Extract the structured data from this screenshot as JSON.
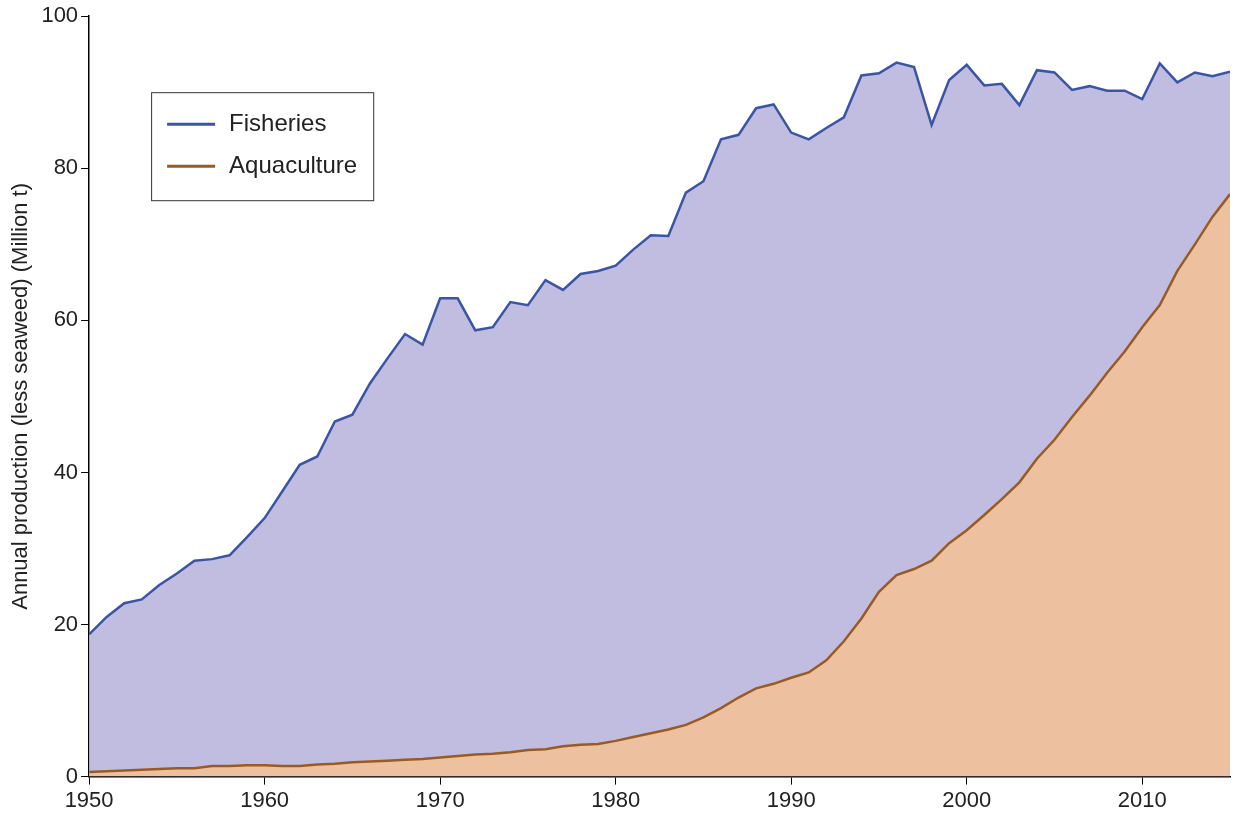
{
  "chart_data": {
    "type": "area",
    "y_label": "Annual production (less seaweed) (Million t)",
    "x": [
      1950,
      1951,
      1952,
      1953,
      1954,
      1955,
      1956,
      1957,
      1958,
      1959,
      1960,
      1961,
      1962,
      1963,
      1964,
      1965,
      1966,
      1967,
      1968,
      1969,
      1970,
      1971,
      1972,
      1973,
      1974,
      1975,
      1976,
      1977,
      1978,
      1979,
      1980,
      1981,
      1982,
      1983,
      1984,
      1985,
      1986,
      1987,
      1988,
      1989,
      1990,
      1991,
      1992,
      1993,
      1994,
      1995,
      1996,
      1997,
      1998,
      1999,
      2000,
      2001,
      2002,
      2003,
      2004,
      2005,
      2006,
      2007,
      2008,
      2009,
      2010,
      2011,
      2012,
      2013,
      2014,
      2015
    ],
    "series": [
      {
        "name": "Fisheries",
        "color": "#3a55a4",
        "values": [
          18.7,
          21.0,
          22.8,
          23.3,
          25.2,
          26.7,
          28.4,
          28.6,
          29.1,
          31.5,
          34.0,
          37.5,
          41.0,
          42.1,
          46.7,
          47.6,
          51.7,
          55.0,
          58.2,
          56.8,
          62.9,
          62.9,
          58.7,
          59.1,
          62.4,
          62.0,
          65.3,
          64.0,
          66.1,
          66.5,
          67.2,
          69.3,
          71.2,
          71.1,
          76.8,
          78.3,
          83.8,
          84.4,
          87.9,
          88.4,
          84.7,
          83.8,
          85.3,
          86.7,
          92.2,
          92.5,
          93.9,
          93.3,
          85.7,
          91.6,
          93.6,
          90.9,
          91.1,
          88.3,
          92.9,
          92.6,
          90.3,
          90.8,
          90.2,
          90.2,
          89.1,
          93.8,
          91.3,
          92.6,
          92.1,
          92.7
        ]
      },
      {
        "name": "Aquaculture",
        "color": "#9a5b22",
        "values": [
          0.6,
          0.7,
          0.8,
          0.9,
          1.0,
          1.1,
          1.1,
          1.4,
          1.4,
          1.5,
          1.5,
          1.4,
          1.4,
          1.6,
          1.7,
          1.9,
          2.0,
          2.1,
          2.2,
          2.3,
          2.5,
          2.7,
          2.9,
          3.0,
          3.2,
          3.5,
          3.6,
          4.0,
          4.2,
          4.3,
          4.7,
          5.2,
          5.7,
          6.2,
          6.8,
          7.8,
          9.0,
          10.4,
          11.6,
          12.2,
          13.0,
          13.7,
          15.3,
          17.8,
          20.8,
          24.3,
          26.5,
          27.3,
          28.4,
          30.7,
          32.4,
          34.4,
          36.5,
          38.7,
          41.8,
          44.3,
          47.3,
          50.1,
          53.1,
          55.9,
          59.1,
          62.0,
          66.5,
          70.0,
          73.6,
          76.6
        ]
      }
    ],
    "xlim": [
      1950,
      2015
    ],
    "xticks": [
      1950,
      1960,
      1970,
      1980,
      1990,
      2000,
      2010
    ],
    "ylim": [
      0,
      100
    ],
    "yticks": [
      0,
      20,
      40,
      60,
      80,
      100
    ],
    "grid": false,
    "legend": "upper left"
  }
}
